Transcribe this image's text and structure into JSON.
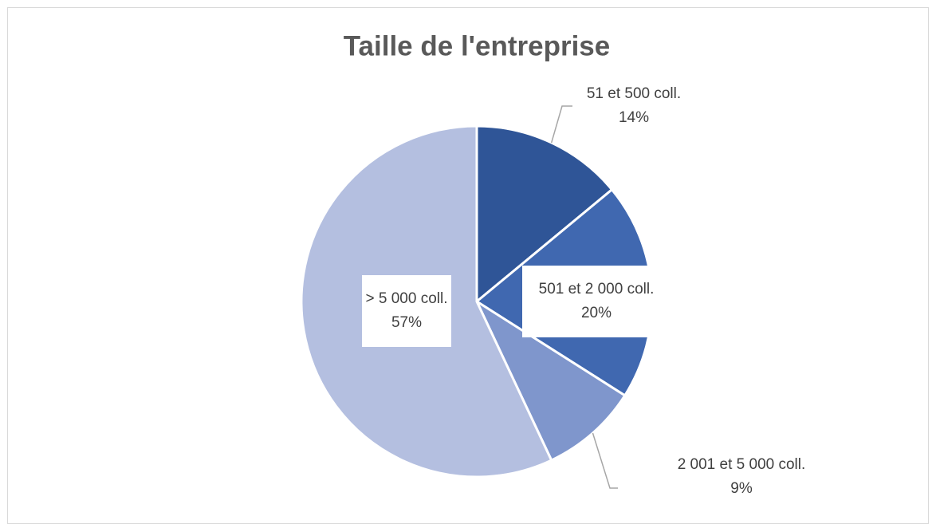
{
  "chart_data": {
    "type": "pie",
    "title": "Taille de l'entreprise",
    "categories": [
      "51 et 500 coll.",
      "501 et 2 000 coll.",
      "2 001 et 5 000 coll.",
      "> 5 000 coll."
    ],
    "values": [
      14,
      20,
      9,
      57
    ],
    "value_labels": [
      "14%",
      "20%",
      "9%",
      "57%"
    ],
    "colors": [
      "#2f5597",
      "#4068b0",
      "#7f96cc",
      "#b4bfe0"
    ]
  }
}
